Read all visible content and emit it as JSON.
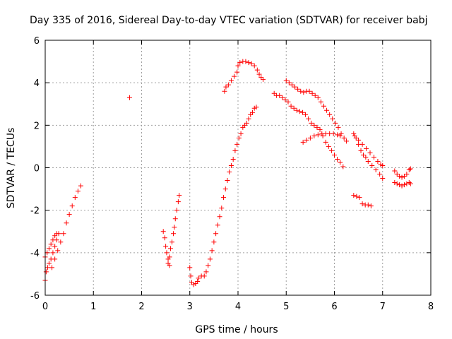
{
  "chart_data": {
    "type": "scatter",
    "title": "Day 335 of 2016, Sidereal Day-to-day VTEC variation (SDTVAR) for receiver babj",
    "xlabel": "GPS time / hours",
    "ylabel": "SDTVAR / TECUs",
    "xlim": [
      0,
      8
    ],
    "ylim": [
      -6,
      6
    ],
    "xticks": [
      "0",
      "1",
      "2",
      "3",
      "4",
      "5",
      "6",
      "7",
      "8"
    ],
    "yticks": [
      "-6",
      "-4",
      "-2",
      "0",
      "2",
      "4",
      "6"
    ],
    "grid": true,
    "marker": "+",
    "color": "#ff0000",
    "series": [
      {
        "points": [
          [
            0.0,
            -5.3
          ],
          [
            0.02,
            -4.9
          ],
          [
            0.05,
            -4.7
          ],
          [
            0.08,
            -4.5
          ],
          [
            0.12,
            -4.3
          ],
          [
            0.16,
            -4.0
          ],
          [
            0.2,
            -3.7
          ],
          [
            0.24,
            -3.4
          ],
          [
            0.28,
            -3.1
          ]
        ]
      },
      {
        "points": [
          [
            0.0,
            -4.2
          ],
          [
            0.04,
            -4.0
          ],
          [
            0.08,
            -3.8
          ],
          [
            0.12,
            -3.6
          ],
          [
            0.16,
            -3.4
          ],
          [
            0.2,
            -3.2
          ],
          [
            0.24,
            -3.1
          ]
        ]
      },
      {
        "points": [
          [
            0.14,
            -4.7
          ],
          [
            0.2,
            -4.3
          ],
          [
            0.26,
            -3.9
          ],
          [
            0.32,
            -3.5
          ],
          [
            0.38,
            -3.1
          ],
          [
            0.44,
            -2.6
          ],
          [
            0.5,
            -2.2
          ],
          [
            0.56,
            -1.8
          ],
          [
            0.62,
            -1.4
          ],
          [
            0.68,
            -1.1
          ],
          [
            0.74,
            -0.85
          ]
        ]
      },
      {
        "points": [
          [
            1.75,
            3.3
          ]
        ]
      },
      {
        "points": [
          [
            2.45,
            -3.0
          ],
          [
            2.48,
            -3.3
          ],
          [
            2.5,
            -3.7
          ],
          [
            2.52,
            -4.0
          ],
          [
            2.55,
            -4.3
          ],
          [
            2.58,
            -4.6
          ]
        ]
      },
      {
        "points": [
          [
            2.55,
            -4.5
          ],
          [
            2.58,
            -4.2
          ],
          [
            2.6,
            -3.8
          ],
          [
            2.63,
            -3.5
          ],
          [
            2.66,
            -3.1
          ],
          [
            2.68,
            -2.8
          ],
          [
            2.7,
            -2.4
          ],
          [
            2.73,
            -2.0
          ],
          [
            2.76,
            -1.6
          ],
          [
            2.78,
            -1.3
          ]
        ]
      },
      {
        "points": [
          [
            3.0,
            -4.7
          ],
          [
            3.02,
            -5.1
          ],
          [
            3.04,
            -5.4
          ],
          [
            3.08,
            -5.5
          ],
          [
            3.12,
            -5.45
          ],
          [
            3.16,
            -5.35
          ]
        ]
      },
      {
        "points": [
          [
            3.18,
            -5.2
          ],
          [
            3.24,
            -5.1
          ],
          [
            3.3,
            -5.1
          ],
          [
            3.34,
            -4.9
          ],
          [
            3.38,
            -4.6
          ],
          [
            3.42,
            -4.3
          ],
          [
            3.46,
            -3.9
          ],
          [
            3.5,
            -3.5
          ],
          [
            3.54,
            -3.1
          ],
          [
            3.58,
            -2.7
          ],
          [
            3.62,
            -2.3
          ],
          [
            3.66,
            -1.9
          ],
          [
            3.7,
            -1.4
          ],
          [
            3.74,
            -1.0
          ],
          [
            3.78,
            -0.6
          ],
          [
            3.82,
            -0.2
          ],
          [
            3.86,
            0.1
          ],
          [
            3.9,
            0.4
          ],
          [
            3.94,
            0.8
          ],
          [
            3.98,
            1.1
          ],
          [
            4.02,
            1.4
          ],
          [
            4.06,
            1.6
          ],
          [
            4.1,
            1.9
          ],
          [
            4.14,
            2.0
          ],
          [
            4.18,
            2.1
          ],
          [
            4.22,
            2.3
          ],
          [
            4.26,
            2.5
          ],
          [
            4.3,
            2.6
          ],
          [
            4.34,
            2.8
          ],
          [
            4.38,
            2.85
          ]
        ]
      },
      {
        "points": [
          [
            3.72,
            3.6
          ],
          [
            3.75,
            3.8
          ],
          [
            3.8,
            3.9
          ],
          [
            3.86,
            4.1
          ],
          [
            3.92,
            4.3
          ],
          [
            3.98,
            4.5
          ],
          [
            4.0,
            4.8
          ],
          [
            4.04,
            4.95
          ],
          [
            4.1,
            5.0
          ],
          [
            4.16,
            5.0
          ],
          [
            4.22,
            4.95
          ],
          [
            4.28,
            4.9
          ],
          [
            4.34,
            4.8
          ],
          [
            4.4,
            4.6
          ],
          [
            4.44,
            4.4
          ],
          [
            4.48,
            4.25
          ],
          [
            4.52,
            4.15
          ]
        ]
      },
      {
        "points": [
          [
            4.75,
            3.5
          ],
          [
            4.8,
            3.4
          ],
          [
            4.86,
            3.4
          ],
          [
            4.92,
            3.3
          ],
          [
            4.98,
            3.2
          ],
          [
            5.04,
            3.1
          ],
          [
            5.1,
            2.9
          ],
          [
            5.16,
            2.8
          ],
          [
            5.22,
            2.7
          ],
          [
            5.28,
            2.65
          ],
          [
            5.34,
            2.6
          ],
          [
            5.4,
            2.5
          ],
          [
            5.46,
            2.3
          ],
          [
            5.52,
            2.1
          ],
          [
            5.58,
            2.0
          ],
          [
            5.64,
            1.9
          ],
          [
            5.7,
            1.8
          ],
          [
            5.76,
            1.5
          ],
          [
            5.82,
            1.2
          ],
          [
            5.88,
            1.0
          ],
          [
            5.94,
            0.8
          ],
          [
            6.0,
            0.6
          ],
          [
            6.06,
            0.4
          ],
          [
            6.12,
            0.25
          ],
          [
            6.18,
            0.05
          ]
        ]
      },
      {
        "points": [
          [
            5.0,
            4.1
          ],
          [
            5.06,
            4.0
          ],
          [
            5.12,
            3.9
          ],
          [
            5.18,
            3.8
          ],
          [
            5.24,
            3.7
          ],
          [
            5.3,
            3.6
          ],
          [
            5.36,
            3.55
          ],
          [
            5.42,
            3.6
          ],
          [
            5.48,
            3.6
          ],
          [
            5.54,
            3.5
          ],
          [
            5.6,
            3.4
          ],
          [
            5.66,
            3.3
          ],
          [
            5.72,
            3.1
          ],
          [
            5.78,
            2.9
          ],
          [
            5.84,
            2.7
          ],
          [
            5.9,
            2.5
          ],
          [
            5.96,
            2.3
          ],
          [
            6.02,
            2.1
          ],
          [
            6.08,
            1.9
          ],
          [
            6.14,
            1.6
          ],
          [
            6.2,
            1.4
          ],
          [
            6.25,
            1.25
          ]
        ]
      },
      {
        "points": [
          [
            5.35,
            1.2
          ],
          [
            5.42,
            1.3
          ],
          [
            5.5,
            1.4
          ],
          [
            5.58,
            1.5
          ],
          [
            5.66,
            1.55
          ],
          [
            5.74,
            1.6
          ],
          [
            5.82,
            1.6
          ],
          [
            5.9,
            1.6
          ],
          [
            5.98,
            1.6
          ],
          [
            6.06,
            1.55
          ],
          [
            6.12,
            1.5
          ]
        ]
      },
      {
        "points": [
          [
            6.4,
            1.6
          ],
          [
            6.45,
            1.4
          ],
          [
            6.5,
            1.1
          ],
          [
            6.55,
            0.8
          ],
          [
            6.6,
            0.6
          ],
          [
            6.65,
            0.5
          ],
          [
            6.7,
            0.3
          ],
          [
            6.78,
            0.1
          ],
          [
            6.86,
            -0.1
          ],
          [
            6.94,
            -0.3
          ],
          [
            7.0,
            -0.5
          ]
        ]
      },
      {
        "points": [
          [
            6.42,
            1.5
          ],
          [
            6.5,
            1.3
          ],
          [
            6.58,
            1.1
          ],
          [
            6.66,
            0.9
          ],
          [
            6.74,
            0.7
          ],
          [
            6.82,
            0.5
          ],
          [
            6.9,
            0.3
          ],
          [
            6.96,
            0.15
          ],
          [
            7.0,
            0.1
          ]
        ]
      },
      {
        "points": [
          [
            6.4,
            -1.3
          ],
          [
            6.46,
            -1.35
          ],
          [
            6.52,
            -1.4
          ],
          [
            6.58,
            -1.7
          ],
          [
            6.64,
            -1.75
          ],
          [
            6.7,
            -1.75
          ],
          [
            6.76,
            -1.8
          ]
        ]
      },
      {
        "points": [
          [
            7.25,
            -0.15
          ],
          [
            7.3,
            -0.3
          ],
          [
            7.35,
            -0.4
          ],
          [
            7.4,
            -0.45
          ],
          [
            7.45,
            -0.4
          ],
          [
            7.5,
            -0.3
          ],
          [
            7.55,
            -0.1
          ],
          [
            7.58,
            -0.05
          ]
        ]
      },
      {
        "points": [
          [
            7.25,
            -0.7
          ],
          [
            7.3,
            -0.75
          ],
          [
            7.35,
            -0.8
          ],
          [
            7.4,
            -0.85
          ],
          [
            7.45,
            -0.8
          ],
          [
            7.5,
            -0.75
          ],
          [
            7.55,
            -0.7
          ],
          [
            7.58,
            -0.75
          ]
        ]
      }
    ]
  }
}
